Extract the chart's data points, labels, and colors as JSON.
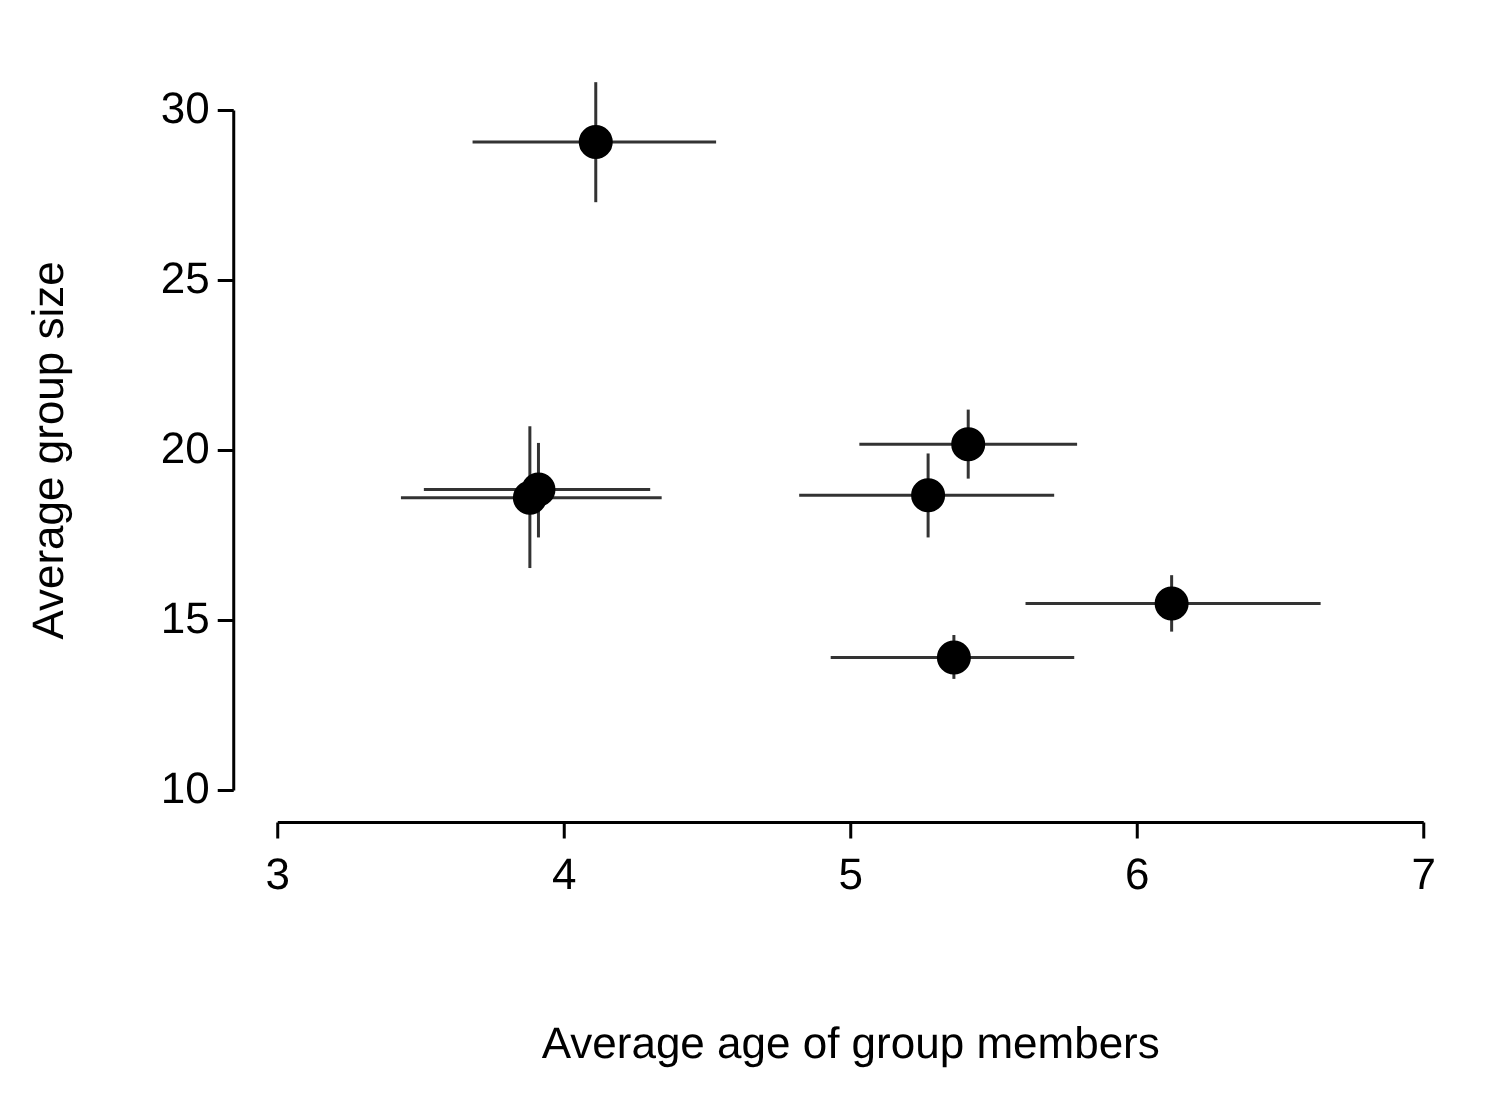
{
  "chart_data": {
    "type": "scatter",
    "xlabel": "Average age of group members",
    "ylabel": "Average group size",
    "x": [
      4.11,
      3.88,
      3.91,
      5.41,
      5.27,
      6.12,
      5.36
    ],
    "values": [
      29.07,
      18.61,
      18.85,
      20.18,
      18.68,
      15.5,
      13.91
    ],
    "errors": [
      [
        27.3,
        30.83
      ],
      [
        16.54,
        20.71
      ],
      [
        17.44,
        20.22
      ],
      [
        19.17,
        21.2
      ],
      [
        17.44,
        19.91
      ],
      [
        14.67,
        16.33
      ],
      [
        13.28,
        14.57
      ]
    ],
    "xerrors": [
      [
        3.68,
        4.53
      ],
      [
        3.43,
        4.34
      ],
      [
        3.51,
        4.3
      ],
      [
        5.03,
        5.79
      ],
      [
        4.82,
        5.71
      ],
      [
        5.61,
        6.64
      ],
      [
        4.93,
        5.78
      ]
    ],
    "color": "#000000",
    "marker": "circle",
    "xlim": [
      3,
      7
    ],
    "xticks": [
      3,
      4,
      5,
      6,
      7
    ],
    "ylim": [
      10,
      30
    ],
    "yticks": [
      10,
      15,
      20,
      25,
      30
    ],
    "grid": false,
    "legend": false
  }
}
